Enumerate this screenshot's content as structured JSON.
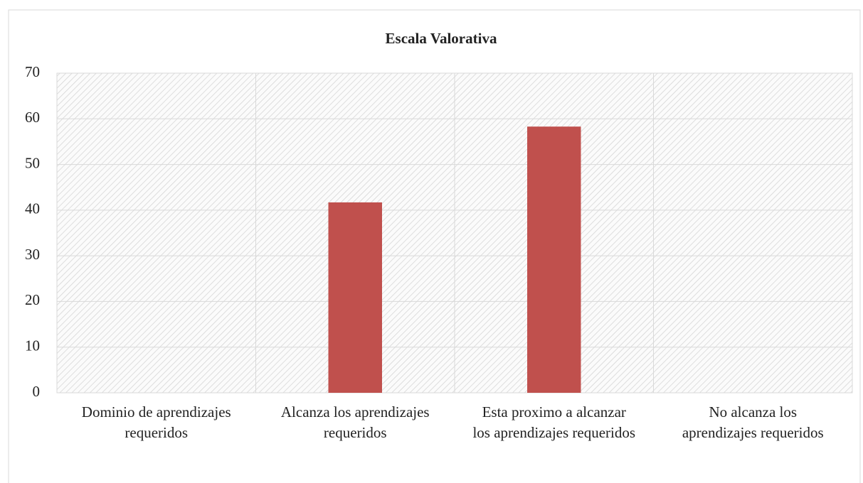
{
  "chart_data": {
    "type": "bar",
    "title": "Escala Valorativa",
    "categories": [
      "Dominio de aprendizajes requeridos",
      "Alcanza los aprendizajes requeridos",
      "Esta proximo a alcanzar los aprendizajes requeridos",
      "No alcanza los aprendizajes requeridos"
    ],
    "values": [
      0,
      41.7,
      58.3,
      0
    ],
    "color": "#c0504d",
    "ylim": [
      0,
      70
    ],
    "yticks": [
      0,
      10,
      20,
      30,
      40,
      50,
      60,
      70
    ],
    "grid": true
  }
}
